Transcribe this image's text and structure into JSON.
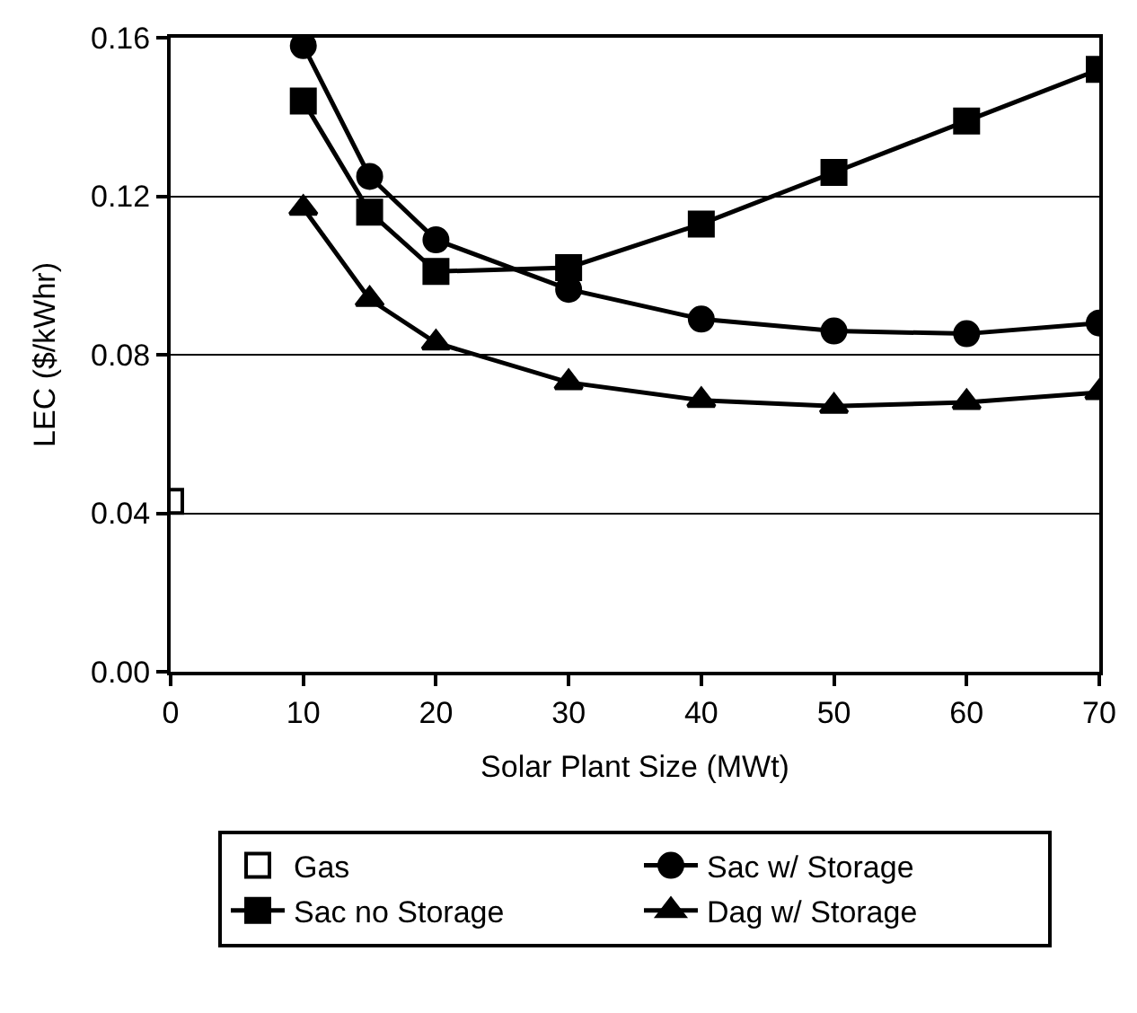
{
  "chart_data": {
    "type": "line",
    "xlabel": "Solar Plant Size (MWt)",
    "ylabel": "LEC ($/kWhr)",
    "xlim": [
      0,
      70
    ],
    "xticks": [
      0,
      10,
      20,
      30,
      40,
      50,
      60,
      70
    ],
    "ylim": [
      0,
      0.16
    ],
    "yticks": [
      {
        "value": 0,
        "label": "0.00"
      },
      0.04,
      0.08,
      0.12,
      0.16
    ],
    "grid": "y",
    "legend": "bottom",
    "line_style": "solid",
    "series": [
      {
        "name": "Gas",
        "type": "scatter",
        "marker": "square-open",
        "color": "#000000",
        "x": [
          0
        ],
        "values": [
          0.043
        ]
      },
      {
        "name": "Sac w/ Storage",
        "marker": "circle",
        "color": "#000000",
        "x": [
          10,
          15,
          20,
          30,
          40,
          50,
          60,
          70
        ],
        "values": [
          0.158,
          0.125,
          0.109,
          0.0965,
          0.089,
          0.086,
          0.0853,
          0.088
        ]
      },
      {
        "name": "Sac no Storage",
        "marker": "square",
        "color": "#000000",
        "x": [
          10,
          15,
          20,
          30,
          40,
          50,
          60,
          70
        ],
        "values": [
          0.144,
          0.116,
          0.101,
          0.102,
          0.113,
          0.126,
          0.139,
          0.152
        ]
      },
      {
        "name": "Dag w/ Storage",
        "marker": "triangle",
        "color": "#000000",
        "x": [
          10,
          15,
          20,
          30,
          40,
          50,
          60,
          70
        ],
        "values": [
          0.117,
          0.094,
          0.083,
          0.073,
          0.0685,
          0.067,
          0.068,
          0.0705
        ]
      }
    ]
  }
}
